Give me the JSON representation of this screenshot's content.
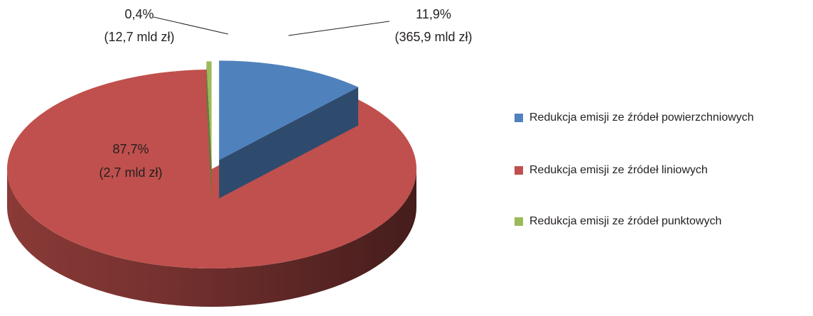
{
  "chart_data": {
    "type": "pie",
    "style": "3d-exploded",
    "slices": [
      {
        "name": "Redukcja emisji ze źródeł powierzchniowych",
        "percent": 11.9,
        "percent_label": "11,9%",
        "amount_label": "(365,9 mld zł)",
        "color": "#4f81bd"
      },
      {
        "name": "Redukcja emisji ze źródeł liniowych",
        "percent": 87.7,
        "percent_label": "87,7%",
        "amount_label": "(2,7 mld zł)",
        "color": "#c0504d"
      },
      {
        "name": "Redukcja emisji ze źródeł punktowych",
        "percent": 0.4,
        "percent_label": "0,4%",
        "amount_label": "(12,7 mld zł)",
        "color": "#9bbb59"
      }
    ],
    "legend_position": "right"
  }
}
